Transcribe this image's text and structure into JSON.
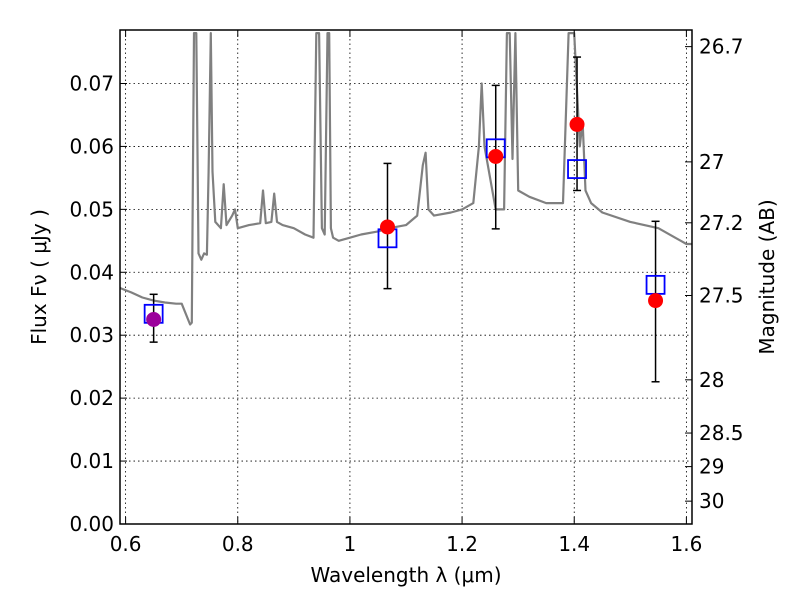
{
  "chart_data": {
    "type": "scatter",
    "xlabel": "Wavelength  λ (μm)",
    "ylabel": "Flux  Fν  ( μJy )",
    "ylabel_right": "Magnitude (AB)",
    "xlim": [
      0.59,
      1.61
    ],
    "ylim": [
      0.0,
      0.0785
    ],
    "grid": true,
    "x_ticks": [
      {
        "v": 0.6,
        "label": "0.6"
      },
      {
        "v": 0.8,
        "label": "0.8"
      },
      {
        "v": 1.0,
        "label": "1"
      },
      {
        "v": 1.2,
        "label": "1.2"
      },
      {
        "v": 1.4,
        "label": "1.4"
      },
      {
        "v": 1.6,
        "label": "1.6"
      }
    ],
    "y_ticks": [
      {
        "v": 0.0,
        "label": "0.00"
      },
      {
        "v": 0.01,
        "label": "0.01"
      },
      {
        "v": 0.02,
        "label": "0.02"
      },
      {
        "v": 0.03,
        "label": "0.03"
      },
      {
        "v": 0.04,
        "label": "0.04"
      },
      {
        "v": 0.05,
        "label": "0.05"
      },
      {
        "v": 0.06,
        "label": "0.06"
      },
      {
        "v": 0.07,
        "label": "0.07"
      }
    ],
    "right_ticks": [
      {
        "mag": 26.7,
        "label": "26.7"
      },
      {
        "mag": 27.0,
        "label": "27"
      },
      {
        "mag": 27.2,
        "label": "27.2"
      },
      {
        "mag": 27.5,
        "label": "27.5"
      },
      {
        "mag": 28.0,
        "label": "28"
      },
      {
        "mag": 28.5,
        "label": "28.5"
      },
      {
        "mag": 29.0,
        "label": "29"
      },
      {
        "mag": 30.0,
        "label": "30"
      }
    ],
    "model_spectrum": {
      "color": "#808080",
      "x": [
        0.59,
        0.61,
        0.63,
        0.65,
        0.67,
        0.69,
        0.7,
        0.715,
        0.718,
        0.722,
        0.726,
        0.73,
        0.735,
        0.74,
        0.745,
        0.748,
        0.752,
        0.755,
        0.76,
        0.77,
        0.775,
        0.78,
        0.79,
        0.795,
        0.8,
        0.82,
        0.84,
        0.845,
        0.85,
        0.86,
        0.865,
        0.87,
        0.88,
        0.9,
        0.92,
        0.935,
        0.94,
        0.945,
        0.95,
        0.955,
        0.96,
        0.963,
        0.966,
        0.97,
        0.98,
        1.0,
        1.02,
        1.05,
        1.07,
        1.1,
        1.12,
        1.13,
        1.135,
        1.14,
        1.15,
        1.18,
        1.2,
        1.22,
        1.23,
        1.235,
        1.24,
        1.26,
        1.275,
        1.28,
        1.285,
        1.29,
        1.295,
        1.3,
        1.32,
        1.35,
        1.38,
        1.39,
        1.4,
        1.41,
        1.415,
        1.42,
        1.43,
        1.45,
        1.5,
        1.55,
        1.58,
        1.59,
        1.6,
        1.61
      ],
      "y": [
        0.0375,
        0.0368,
        0.036,
        0.0355,
        0.0352,
        0.035,
        0.035,
        0.0317,
        0.032,
        0.078,
        0.078,
        0.043,
        0.042,
        0.043,
        0.0428,
        0.056,
        0.078,
        0.056,
        0.048,
        0.047,
        0.054,
        0.0475,
        0.049,
        0.05,
        0.047,
        0.0475,
        0.0478,
        0.053,
        0.0478,
        0.048,
        0.0525,
        0.048,
        0.0475,
        0.047,
        0.046,
        0.0455,
        0.078,
        0.078,
        0.047,
        0.046,
        0.078,
        0.078,
        0.047,
        0.0455,
        0.045,
        0.0455,
        0.046,
        0.0465,
        0.047,
        0.0475,
        0.049,
        0.057,
        0.059,
        0.05,
        0.049,
        0.0495,
        0.05,
        0.051,
        0.06,
        0.07,
        0.06,
        0.05,
        0.05,
        0.078,
        0.078,
        0.058,
        0.078,
        0.053,
        0.052,
        0.051,
        0.051,
        0.078,
        0.078,
        0.06,
        0.064,
        0.053,
        0.051,
        0.0495,
        0.048,
        0.047,
        0.0455,
        0.045,
        0.0445,
        0.0445
      ]
    },
    "observed": {
      "color": "#ff0000",
      "first_point_color": "#9b009b",
      "x": [
        0.65,
        1.067,
        1.26,
        1.405,
        1.545
      ],
      "y": [
        0.0325,
        0.0472,
        0.0584,
        0.0635,
        0.0355
      ],
      "err_low": [
        0.0289,
        0.0374,
        0.0469,
        0.053,
        0.0226
      ],
      "err_high": [
        0.0365,
        0.0573,
        0.0697,
        0.0742,
        0.0481
      ]
    },
    "model_photometry": {
      "color": "#0000ff",
      "x": [
        0.65,
        1.067,
        1.26,
        1.405,
        1.545
      ],
      "y": [
        0.0334,
        0.0454,
        0.0597,
        0.0564,
        0.038
      ]
    }
  }
}
